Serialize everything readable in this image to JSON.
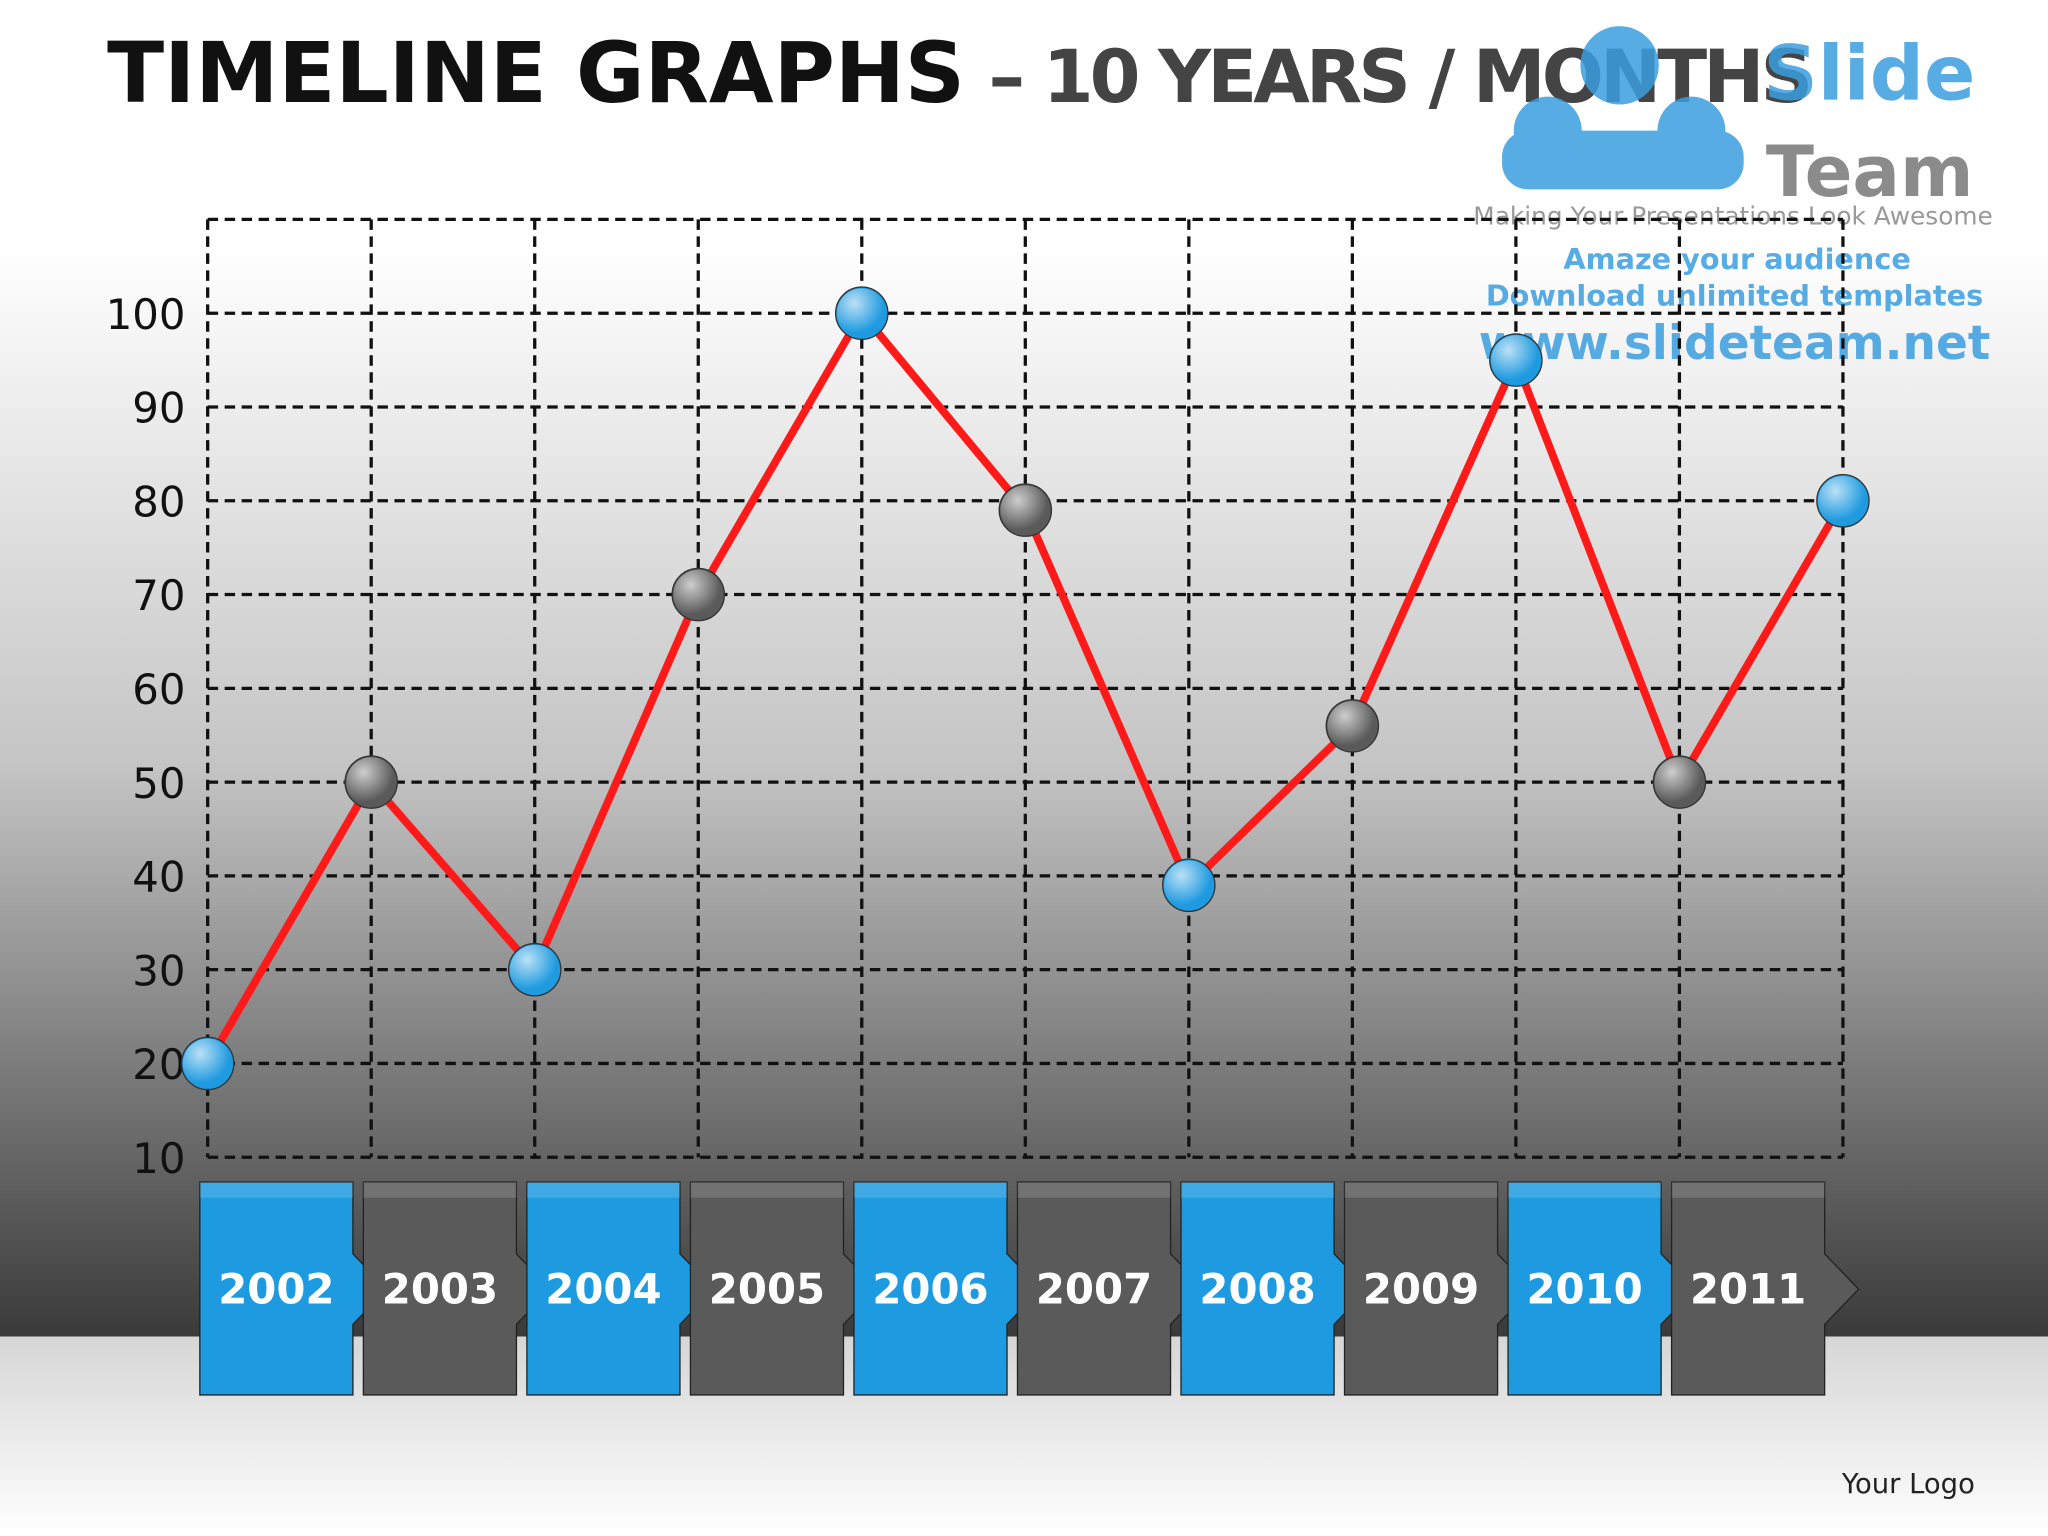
{
  "chart_data": {
    "type": "line",
    "title": "TIMELINE  GRAPHS",
    "subtitle": "– 10 YEARS / MONTHS",
    "categories": [
      "2002",
      "2003",
      "2004",
      "2005",
      "2006",
      "2007",
      "2008",
      "2009",
      "2010",
      "2011",
      null
    ],
    "values": [
      20,
      50,
      30,
      70,
      100,
      79,
      39,
      56,
      95,
      50,
      80
    ],
    "color": "#ff1a1a",
    "marker_colors": [
      "#1e9ae0",
      "#5a5a5a"
    ],
    "ylim": [
      10,
      110
    ],
    "yticks": [
      10,
      20,
      30,
      40,
      50,
      60,
      70,
      80,
      90,
      100
    ],
    "grid": true
  },
  "watermark": {
    "brand1": "Slide",
    "brand2": "Team",
    "tagline": "Making Your Presentations Look Awesome",
    "line1": "Amaze your audience",
    "line2": "Download unlimited templates",
    "url": "www.slideteam.net"
  },
  "footer": "Your Logo"
}
